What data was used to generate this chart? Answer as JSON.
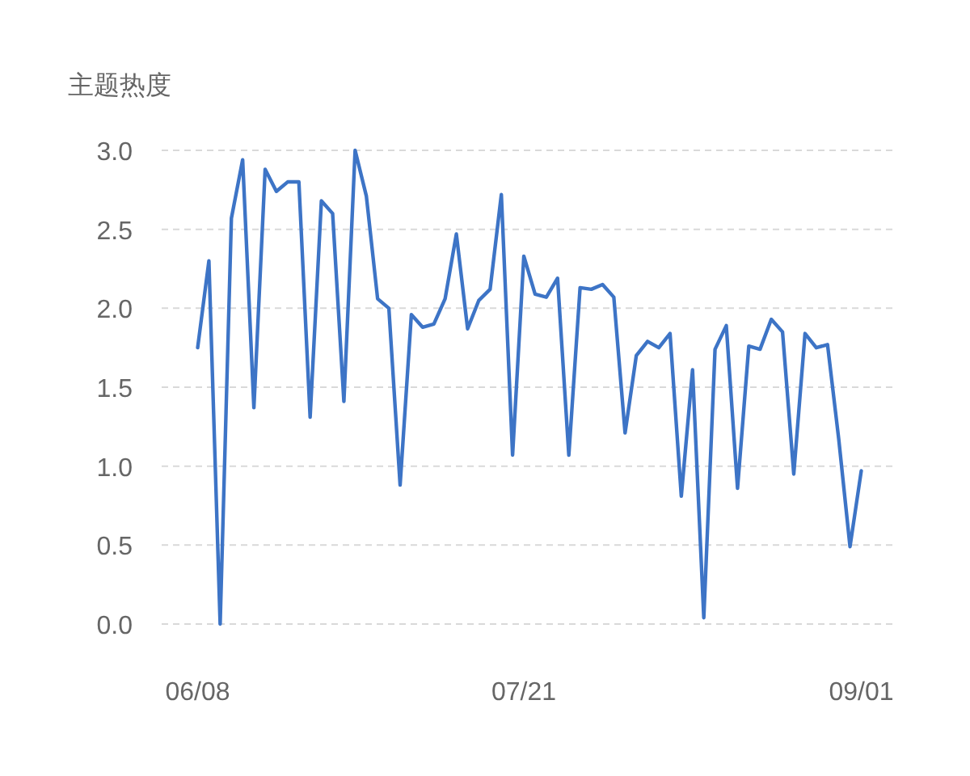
{
  "chart_data": {
    "type": "line",
    "ylabel": "主题热度",
    "categories": [
      "06/08",
      null,
      null,
      null,
      null,
      null,
      null,
      null,
      null,
      null,
      null,
      null,
      null,
      null,
      null,
      null,
      null,
      null,
      null,
      null,
      null,
      null,
      null,
      null,
      null,
      null,
      null,
      null,
      null,
      "07/21",
      null,
      null,
      null,
      null,
      null,
      null,
      null,
      null,
      null,
      null,
      null,
      null,
      null,
      null,
      null,
      null,
      null,
      null,
      null,
      null,
      null,
      null,
      null,
      null,
      null,
      null,
      null,
      null,
      null,
      "09/01"
    ],
    "series": [
      {
        "color": "#3d74c6",
        "values": [
          1.75,
          2.3,
          0.0,
          2.57,
          2.94,
          1.37,
          2.88,
          2.74,
          2.8,
          2.8,
          1.31,
          2.68,
          2.6,
          1.41,
          3.0,
          2.71,
          2.06,
          2.0,
          0.88,
          1.96,
          1.88,
          1.9,
          2.06,
          2.47,
          1.87,
          2.05,
          2.12,
          2.72,
          1.07,
          2.33,
          2.09,
          2.07,
          2.19,
          1.07,
          2.13,
          2.12,
          2.15,
          2.07,
          1.21,
          1.7,
          1.79,
          1.75,
          1.84,
          0.81,
          1.61,
          0.04,
          1.74,
          1.89,
          0.86,
          1.76,
          1.74,
          1.93,
          1.85,
          0.95,
          1.84,
          1.75,
          1.77,
          1.17,
          0.49,
          0.97
        ]
      }
    ],
    "ylim": [
      0,
      3
    ],
    "yticks": [
      {
        "value": 0,
        "label": "0.0"
      },
      {
        "value": 0.5,
        "label": "0.5"
      },
      {
        "value": 1,
        "label": "1.0"
      },
      {
        "value": 1.5,
        "label": "1.5"
      },
      {
        "value": 2,
        "label": "2.0"
      },
      {
        "value": 2.5,
        "label": "2.5"
      },
      {
        "value": 3,
        "label": "3.0"
      }
    ],
    "grid": "y",
    "line_style": "solid"
  }
}
